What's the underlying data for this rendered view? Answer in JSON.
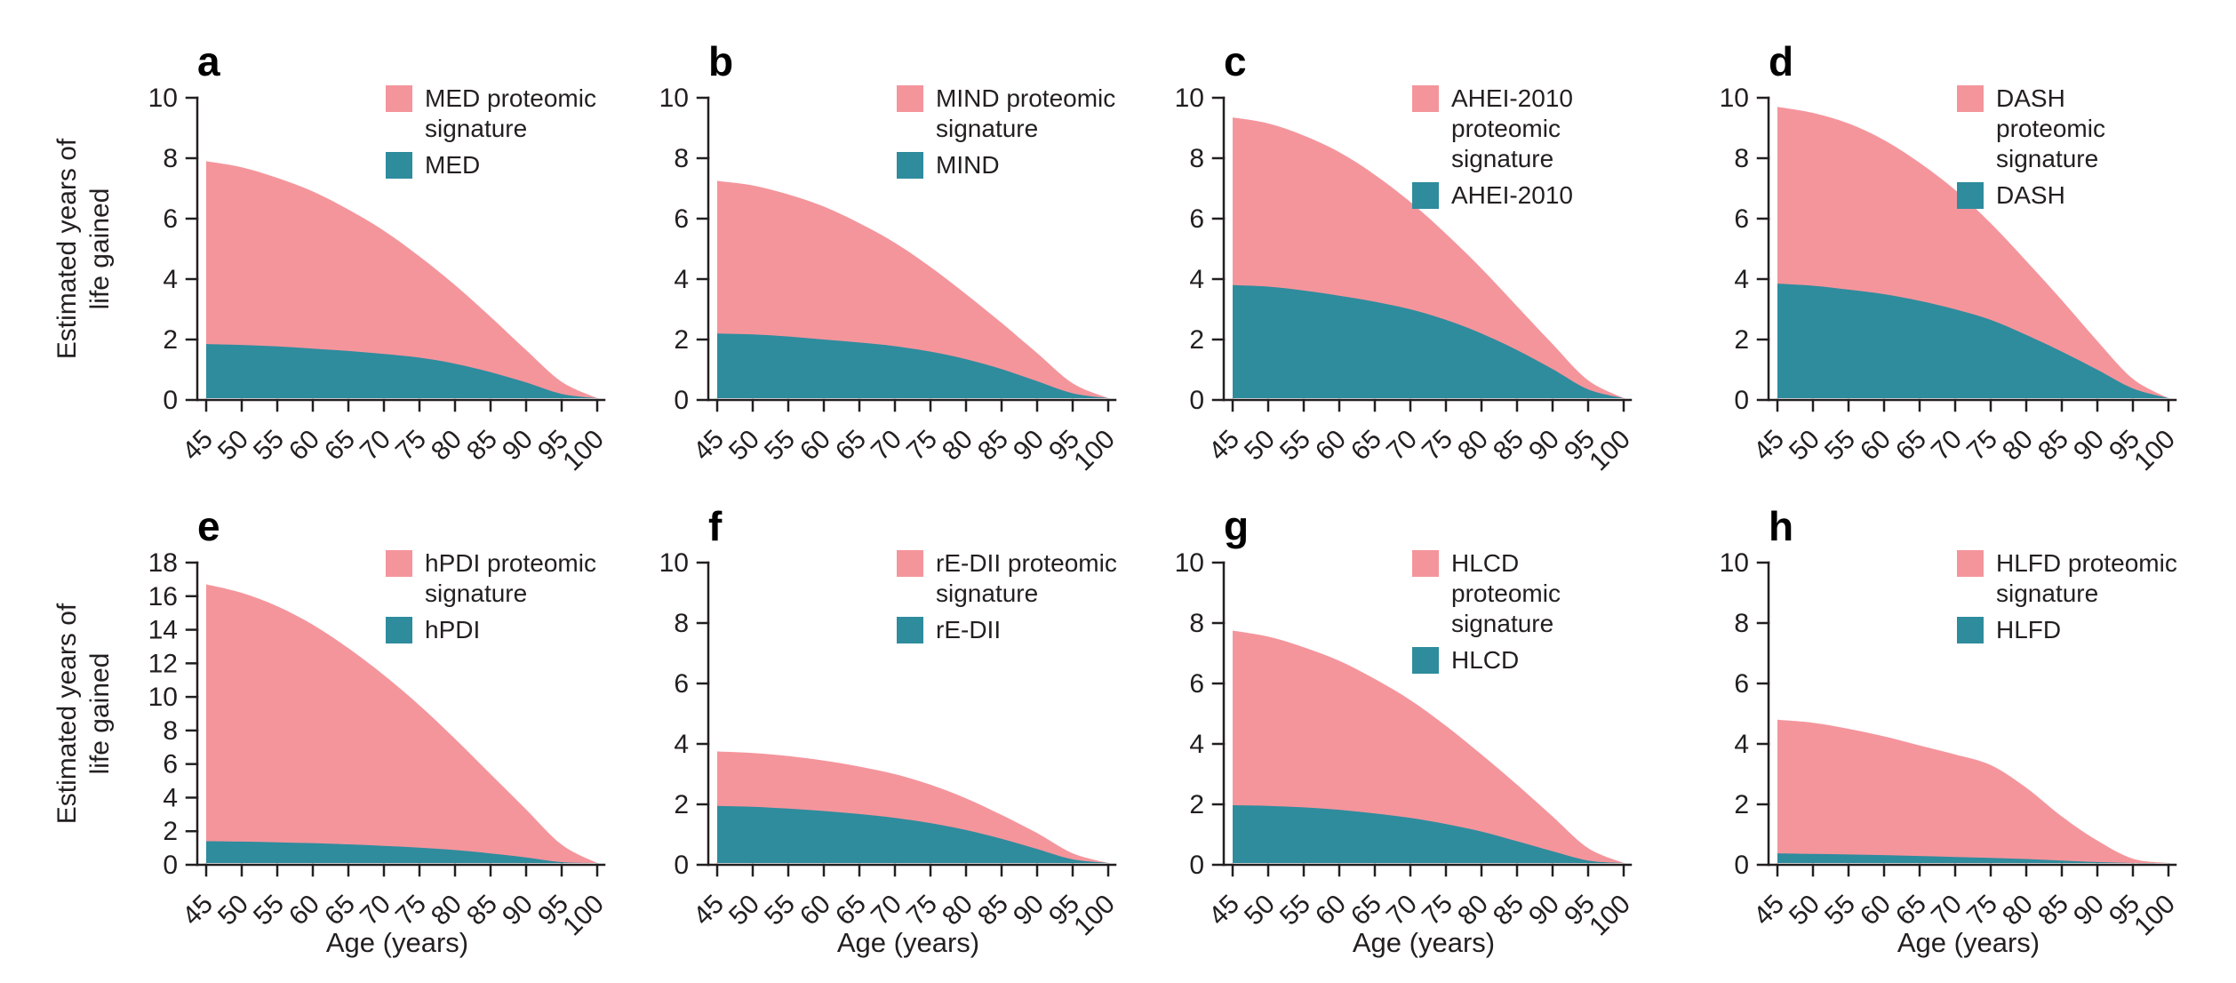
{
  "figure": {
    "y_axis_title": "Estimated years of\nlife gained",
    "x_axis_title": "Age (years)"
  },
  "colors": {
    "signature": "#F4959C",
    "index": "#2E8C9D",
    "axis": "#231F20",
    "text": "#231F20"
  },
  "chart_data": [
    {
      "type": "area",
      "panel": "a",
      "x": [
        45,
        50,
        55,
        60,
        65,
        70,
        75,
        80,
        85,
        90,
        95,
        100
      ],
      "y_ticks": [
        0,
        2,
        4,
        6,
        8,
        10
      ],
      "ylim": [
        0,
        10
      ],
      "xlabel": "",
      "ylabel": "Estimated years of\nlife gained",
      "legend_position": "top-right",
      "series": [
        {
          "name": "MED proteomic signature",
          "legend_label": "MED proteomic\nsignature",
          "values": [
            7.9,
            7.7,
            7.35,
            6.9,
            6.3,
            5.6,
            4.75,
            3.8,
            2.75,
            1.65,
            0.6,
            0.02
          ]
        },
        {
          "name": "MED",
          "legend_label": "MED",
          "values": [
            1.85,
            1.82,
            1.77,
            1.7,
            1.62,
            1.52,
            1.4,
            1.2,
            0.92,
            0.58,
            0.2,
            0.01
          ]
        }
      ]
    },
    {
      "type": "area",
      "panel": "b",
      "x": [
        45,
        50,
        55,
        60,
        65,
        70,
        75,
        80,
        85,
        90,
        95,
        100
      ],
      "y_ticks": [
        0,
        2,
        4,
        6,
        8,
        10
      ],
      "ylim": [
        0,
        10
      ],
      "xlabel": "",
      "ylabel": "",
      "legend_position": "top-right",
      "series": [
        {
          "name": "MIND proteomic signature",
          "legend_label": "MIND proteomic\nsignature",
          "values": [
            7.25,
            7.1,
            6.8,
            6.4,
            5.85,
            5.2,
            4.4,
            3.5,
            2.55,
            1.55,
            0.55,
            0.02
          ]
        },
        {
          "name": "MIND",
          "legend_label": "MIND",
          "values": [
            2.2,
            2.17,
            2.1,
            2.0,
            1.9,
            1.78,
            1.6,
            1.35,
            1.02,
            0.62,
            0.22,
            0.01
          ]
        }
      ]
    },
    {
      "type": "area",
      "panel": "c",
      "x": [
        45,
        50,
        55,
        60,
        65,
        70,
        75,
        80,
        85,
        90,
        95,
        100
      ],
      "y_ticks": [
        0,
        2,
        4,
        6,
        8,
        10
      ],
      "ylim": [
        0,
        10
      ],
      "xlabel": "",
      "ylabel": "",
      "legend_position": "top-right",
      "series": [
        {
          "name": "AHEI-2010 proteomic signature",
          "legend_label": "AHEI-2010\nproteomic signature",
          "values": [
            9.35,
            9.15,
            8.75,
            8.2,
            7.45,
            6.55,
            5.5,
            4.35,
            3.1,
            1.85,
            0.65,
            0.02
          ]
        },
        {
          "name": "AHEI-2010",
          "legend_label": "AHEI-2010",
          "values": [
            3.8,
            3.75,
            3.62,
            3.45,
            3.25,
            3.0,
            2.65,
            2.2,
            1.65,
            1.02,
            0.35,
            0.01
          ]
        }
      ]
    },
    {
      "type": "area",
      "panel": "d",
      "x": [
        45,
        50,
        55,
        60,
        65,
        70,
        75,
        80,
        85,
        90,
        95,
        100
      ],
      "y_ticks": [
        0,
        2,
        4,
        6,
        8,
        10
      ],
      "ylim": [
        0,
        10
      ],
      "xlabel": "",
      "ylabel": "",
      "legend_position": "top-right",
      "series": [
        {
          "name": "DASH proteomic signature",
          "legend_label": "DASH proteomic\nsignature",
          "values": [
            9.7,
            9.5,
            9.15,
            8.6,
            7.85,
            6.95,
            5.85,
            4.6,
            3.3,
            1.95,
            0.7,
            0.02
          ]
        },
        {
          "name": "DASH",
          "legend_label": "DASH",
          "values": [
            3.85,
            3.78,
            3.65,
            3.5,
            3.28,
            3.0,
            2.65,
            2.15,
            1.6,
            1.0,
            0.38,
            0.01
          ]
        }
      ]
    },
    {
      "type": "area",
      "panel": "e",
      "x": [
        45,
        50,
        55,
        60,
        65,
        70,
        75,
        80,
        85,
        90,
        95,
        100
      ],
      "y_ticks": [
        0,
        2,
        4,
        6,
        8,
        10,
        12,
        14,
        16,
        18
      ],
      "ylim": [
        0,
        18
      ],
      "xlabel": "Age (years)",
      "ylabel": "Estimated years of\nlife gained",
      "legend_position": "top-right",
      "series": [
        {
          "name": "hPDI proteomic signature",
          "legend_label": "hPDI proteomic\nsignature",
          "values": [
            16.7,
            16.2,
            15.4,
            14.3,
            12.9,
            11.3,
            9.5,
            7.5,
            5.4,
            3.3,
            1.2,
            0.05
          ]
        },
        {
          "name": "hPDI",
          "legend_label": "hPDI",
          "values": [
            1.4,
            1.38,
            1.34,
            1.29,
            1.22,
            1.13,
            1.02,
            0.88,
            0.68,
            0.44,
            0.16,
            0.01
          ]
        }
      ]
    },
    {
      "type": "area",
      "panel": "f",
      "x": [
        45,
        50,
        55,
        60,
        65,
        70,
        75,
        80,
        85,
        90,
        95,
        100
      ],
      "y_ticks": [
        0,
        2,
        4,
        6,
        8,
        10
      ],
      "ylim": [
        0,
        10
      ],
      "xlabel": "Age (years)",
      "ylabel": "",
      "legend_position": "top-right",
      "series": [
        {
          "name": "rE-DII proteomic signature",
          "legend_label": "rE-DII proteomic\nsignature",
          "values": [
            3.75,
            3.7,
            3.6,
            3.45,
            3.25,
            3.0,
            2.65,
            2.2,
            1.65,
            1.05,
            0.38,
            0.02
          ]
        },
        {
          "name": "rE-DII",
          "legend_label": "rE-DII",
          "values": [
            1.95,
            1.92,
            1.86,
            1.78,
            1.68,
            1.55,
            1.38,
            1.15,
            0.86,
            0.52,
            0.18,
            0.01
          ]
        }
      ]
    },
    {
      "type": "area",
      "panel": "g",
      "x": [
        45,
        50,
        55,
        60,
        65,
        70,
        75,
        80,
        85,
        90,
        95,
        100
      ],
      "y_ticks": [
        0,
        2,
        4,
        6,
        8,
        10
      ],
      "ylim": [
        0,
        10
      ],
      "xlabel": "Age (years)",
      "ylabel": "",
      "legend_position": "top-right",
      "series": [
        {
          "name": "HLCD proteomic signature",
          "legend_label": "HLCD proteomic\nsignature",
          "values": [
            7.75,
            7.55,
            7.2,
            6.75,
            6.15,
            5.45,
            4.6,
            3.65,
            2.65,
            1.6,
            0.55,
            0.02
          ]
        },
        {
          "name": "HLCD",
          "legend_label": "HLCD",
          "values": [
            1.97,
            1.95,
            1.9,
            1.82,
            1.7,
            1.55,
            1.35,
            1.1,
            0.78,
            0.45,
            0.14,
            0.01
          ]
        }
      ]
    },
    {
      "type": "area",
      "panel": "h",
      "x": [
        45,
        50,
        55,
        60,
        65,
        70,
        75,
        80,
        85,
        90,
        95,
        100
      ],
      "y_ticks": [
        0,
        2,
        4,
        6,
        8,
        10
      ],
      "ylim": [
        0,
        10
      ],
      "xlabel": "Age (years)",
      "ylabel": "",
      "legend_position": "top-right",
      "series": [
        {
          "name": "HLFD proteomic signature",
          "legend_label": "HLFD proteomic\nsignature",
          "values": [
            4.8,
            4.7,
            4.5,
            4.25,
            3.95,
            3.65,
            3.3,
            2.55,
            1.6,
            0.8,
            0.2,
            0.02
          ]
        },
        {
          "name": "HLFD",
          "legend_label": "HLFD",
          "values": [
            0.38,
            0.36,
            0.34,
            0.32,
            0.29,
            0.26,
            0.23,
            0.19,
            0.14,
            0.09,
            0.04,
            0.01
          ]
        }
      ]
    }
  ]
}
